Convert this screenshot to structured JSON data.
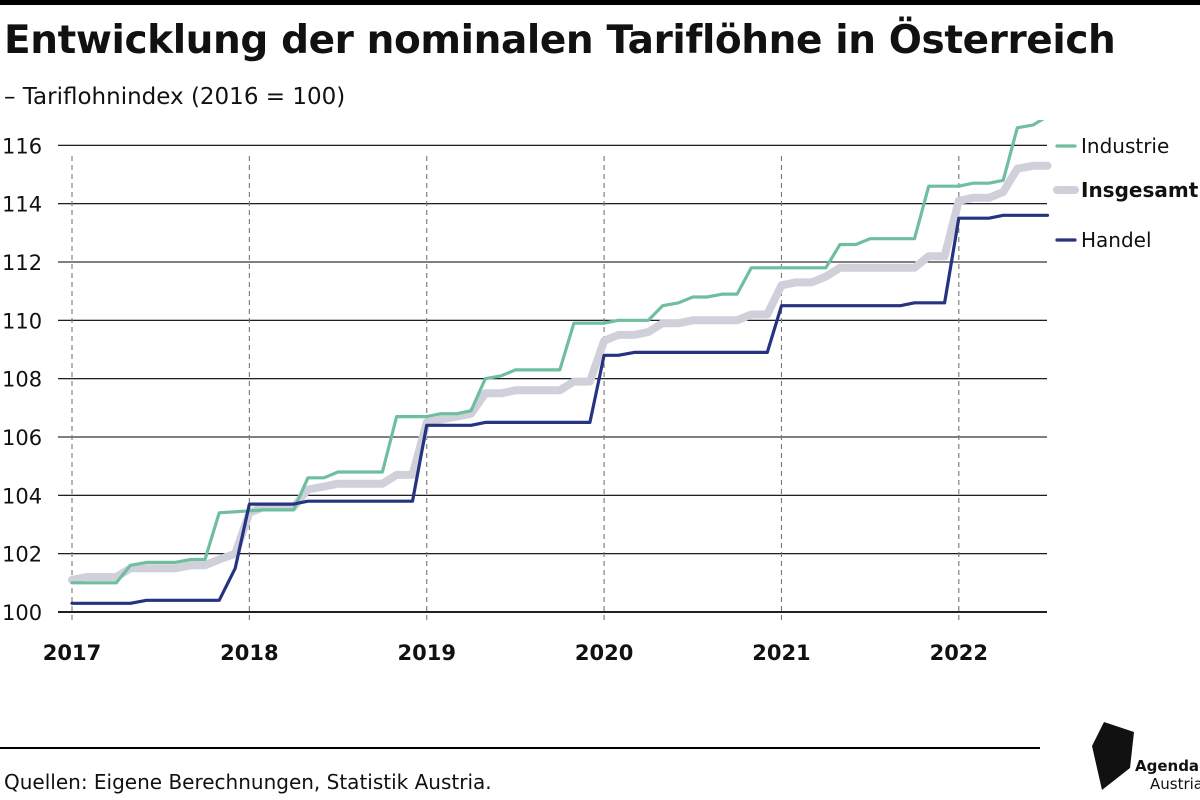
{
  "header": {
    "title": "Entwicklung der nominalen Tariflöhne in Österreich",
    "subtitle": "– Tariflohnindex (2016 = 100)"
  },
  "footer": {
    "source": "Quellen: Eigene Berechnungen, Statistik Austria."
  },
  "logo": {
    "word1": "Agenda",
    "word2": "Austria"
  },
  "chart_data": {
    "type": "line",
    "title": "",
    "xlabel": "",
    "ylabel": "",
    "ylim": [
      100,
      116.8
    ],
    "xlim": [
      2017.0,
      2022.5
    ],
    "yticks": [
      100,
      102,
      104,
      106,
      108,
      110,
      112,
      114,
      116
    ],
    "ytick_labels": [
      "100",
      "102",
      "104",
      "106",
      "108",
      "110",
      "112",
      "114",
      "116"
    ],
    "xticks": [
      2017,
      2018,
      2019,
      2020,
      2021,
      2022
    ],
    "xtick_labels": [
      "2017",
      "2018",
      "2019",
      "2020",
      "2021",
      "2022"
    ],
    "grid": {
      "horizontal": "solid",
      "vertical": "dashed"
    },
    "legend": "right, at line ends",
    "series": [
      {
        "name": "Industrie",
        "color": "#6fbf9f",
        "emphasis": false,
        "points": [
          [
            2017.0,
            101.0
          ],
          [
            2017.25,
            101.0
          ],
          [
            2017.33,
            101.6
          ],
          [
            2017.42,
            101.7
          ],
          [
            2017.58,
            101.7
          ],
          [
            2017.67,
            101.8
          ],
          [
            2017.75,
            101.8
          ],
          [
            2017.83,
            103.4
          ],
          [
            2018.08,
            103.5
          ],
          [
            2018.25,
            103.5
          ],
          [
            2018.33,
            104.6
          ],
          [
            2018.42,
            104.6
          ],
          [
            2018.5,
            104.8
          ],
          [
            2018.75,
            104.8
          ],
          [
            2018.83,
            106.7
          ],
          [
            2019.0,
            106.7
          ],
          [
            2019.08,
            106.8
          ],
          [
            2019.17,
            106.8
          ],
          [
            2019.25,
            106.9
          ],
          [
            2019.33,
            108.0
          ],
          [
            2019.42,
            108.1
          ],
          [
            2019.5,
            108.3
          ],
          [
            2019.75,
            108.3
          ],
          [
            2019.83,
            109.9
          ],
          [
            2020.0,
            109.9
          ],
          [
            2020.08,
            110.0
          ],
          [
            2020.25,
            110.0
          ],
          [
            2020.33,
            110.5
          ],
          [
            2020.42,
            110.6
          ],
          [
            2020.5,
            110.8
          ],
          [
            2020.58,
            110.8
          ],
          [
            2020.67,
            110.9
          ],
          [
            2020.75,
            110.9
          ],
          [
            2020.83,
            111.8
          ],
          [
            2021.0,
            111.8
          ],
          [
            2021.25,
            111.8
          ],
          [
            2021.33,
            112.6
          ],
          [
            2021.42,
            112.6
          ],
          [
            2021.5,
            112.8
          ],
          [
            2021.75,
            112.8
          ],
          [
            2021.83,
            114.6
          ],
          [
            2022.0,
            114.6
          ],
          [
            2022.08,
            114.7
          ],
          [
            2022.17,
            114.7
          ],
          [
            2022.25,
            114.8
          ],
          [
            2022.33,
            116.6
          ],
          [
            2022.42,
            116.7
          ],
          [
            2022.5,
            117.0
          ]
        ]
      },
      {
        "name": "Insgesamt",
        "color": "#cfd0d9",
        "emphasis": true,
        "points": [
          [
            2017.0,
            101.1
          ],
          [
            2017.08,
            101.2
          ],
          [
            2017.25,
            101.2
          ],
          [
            2017.33,
            101.5
          ],
          [
            2017.58,
            101.5
          ],
          [
            2017.67,
            101.6
          ],
          [
            2017.75,
            101.6
          ],
          [
            2017.83,
            101.8
          ],
          [
            2017.92,
            102.0
          ],
          [
            2018.0,
            103.4
          ],
          [
            2018.08,
            103.6
          ],
          [
            2018.25,
            103.6
          ],
          [
            2018.33,
            104.2
          ],
          [
            2018.42,
            104.3
          ],
          [
            2018.5,
            104.4
          ],
          [
            2018.75,
            104.4
          ],
          [
            2018.83,
            104.7
          ],
          [
            2018.92,
            104.7
          ],
          [
            2019.0,
            106.5
          ],
          [
            2019.08,
            106.6
          ],
          [
            2019.17,
            106.7
          ],
          [
            2019.25,
            106.8
          ],
          [
            2019.33,
            107.5
          ],
          [
            2019.42,
            107.5
          ],
          [
            2019.5,
            107.6
          ],
          [
            2019.75,
            107.6
          ],
          [
            2019.83,
            107.9
          ],
          [
            2019.92,
            107.9
          ],
          [
            2020.0,
            109.3
          ],
          [
            2020.08,
            109.5
          ],
          [
            2020.17,
            109.5
          ],
          [
            2020.25,
            109.6
          ],
          [
            2020.33,
            109.9
          ],
          [
            2020.42,
            109.9
          ],
          [
            2020.5,
            110.0
          ],
          [
            2020.75,
            110.0
          ],
          [
            2020.83,
            110.2
          ],
          [
            2020.92,
            110.2
          ],
          [
            2021.0,
            111.2
          ],
          [
            2021.08,
            111.3
          ],
          [
            2021.17,
            111.3
          ],
          [
            2021.25,
            111.5
          ],
          [
            2021.33,
            111.8
          ],
          [
            2021.75,
            111.8
          ],
          [
            2021.83,
            112.2
          ],
          [
            2021.92,
            112.2
          ],
          [
            2022.0,
            114.1
          ],
          [
            2022.08,
            114.2
          ],
          [
            2022.17,
            114.2
          ],
          [
            2022.25,
            114.4
          ],
          [
            2022.33,
            115.2
          ],
          [
            2022.42,
            115.3
          ],
          [
            2022.5,
            115.3
          ]
        ]
      },
      {
        "name": "Handel",
        "color": "#253380",
        "emphasis": false,
        "points": [
          [
            2017.0,
            100.3
          ],
          [
            2017.33,
            100.3
          ],
          [
            2017.42,
            100.4
          ],
          [
            2017.83,
            100.4
          ],
          [
            2017.92,
            101.5
          ],
          [
            2018.0,
            103.7
          ],
          [
            2018.25,
            103.7
          ],
          [
            2018.33,
            103.8
          ],
          [
            2018.92,
            103.8
          ],
          [
            2019.0,
            106.4
          ],
          [
            2019.25,
            106.4
          ],
          [
            2019.33,
            106.5
          ],
          [
            2019.92,
            106.5
          ],
          [
            2020.0,
            108.8
          ],
          [
            2020.08,
            108.8
          ],
          [
            2020.17,
            108.9
          ],
          [
            2020.92,
            108.9
          ],
          [
            2021.0,
            110.5
          ],
          [
            2021.67,
            110.5
          ],
          [
            2021.75,
            110.6
          ],
          [
            2021.92,
            110.6
          ],
          [
            2022.0,
            113.5
          ],
          [
            2022.17,
            113.5
          ],
          [
            2022.25,
            113.6
          ],
          [
            2022.5,
            113.6
          ]
        ]
      }
    ]
  }
}
